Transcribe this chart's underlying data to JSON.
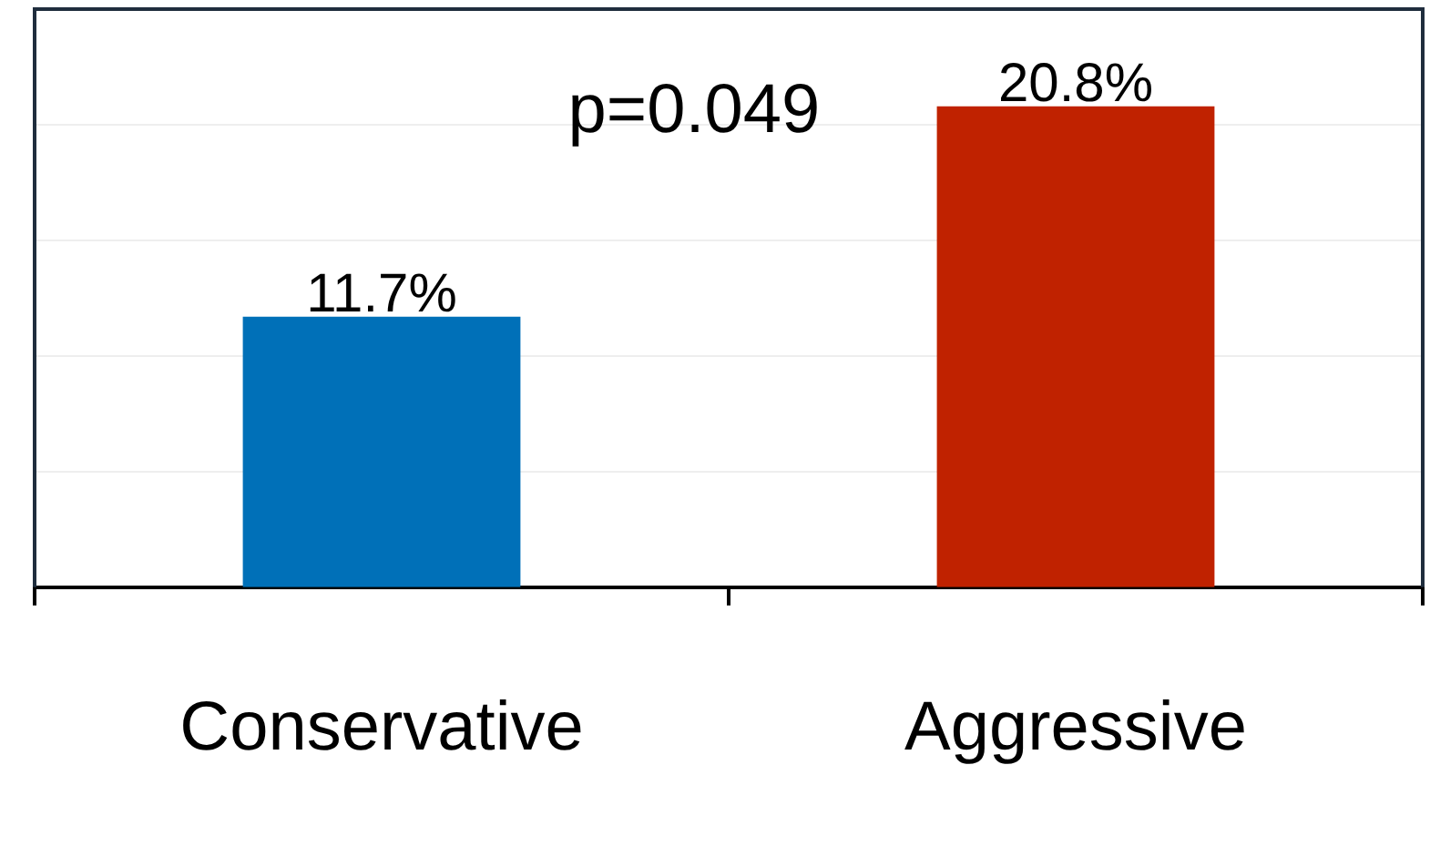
{
  "chart_data": {
    "type": "bar",
    "categories": [
      "Conservative",
      "Aggressive"
    ],
    "values": [
      11.7,
      20.8
    ],
    "colors": [
      "#0070b8",
      "#c02200"
    ],
    "value_labels": [
      "11.7%",
      "20.8%"
    ],
    "ylim": [
      0,
      25
    ],
    "yticks": [
      {
        "value": 5,
        "label": null
      },
      {
        "value": 10,
        "label": null
      },
      {
        "value": 15,
        "label": null
      },
      {
        "value": 20,
        "label": null
      }
    ],
    "grid": "y",
    "tick_labels": "x",
    "legend": false,
    "annotations": [
      "p=0.049"
    ]
  }
}
